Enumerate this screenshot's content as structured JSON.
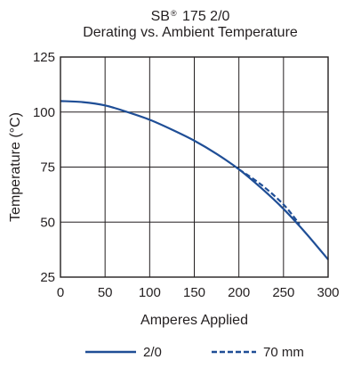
{
  "chart_data": {
    "type": "line",
    "title_prefix": "SB",
    "title_mark": "®",
    "title_suffix": " 175 2/0",
    "subtitle": "Derating vs. Ambient Temperature",
    "xlabel": "Amperes Applied",
    "ylabel": "Temperature (°C)",
    "xlim": [
      0,
      300
    ],
    "ylim": [
      25,
      125
    ],
    "xticks": [
      0,
      50,
      100,
      150,
      200,
      250,
      300
    ],
    "yticks": [
      25,
      50,
      75,
      100,
      125
    ],
    "grid": true,
    "legend_position": "bottom",
    "series": [
      {
        "name": "2/0",
        "style": "solid",
        "color": "#1f4e96",
        "x": [
          0,
          25,
          50,
          75,
          100,
          125,
          150,
          175,
          200,
          225,
          250,
          275,
          300
        ],
        "y": [
          105,
          104.5,
          103,
          100,
          96.5,
          92,
          87,
          81,
          74,
          65.5,
          56,
          45,
          33
        ]
      },
      {
        "name": "70 mm",
        "style": "dashed",
        "color": "#1f4e96",
        "x": [
          200,
          225,
          250,
          268
        ],
        "y": [
          74,
          67,
          58,
          49
        ]
      }
    ]
  }
}
